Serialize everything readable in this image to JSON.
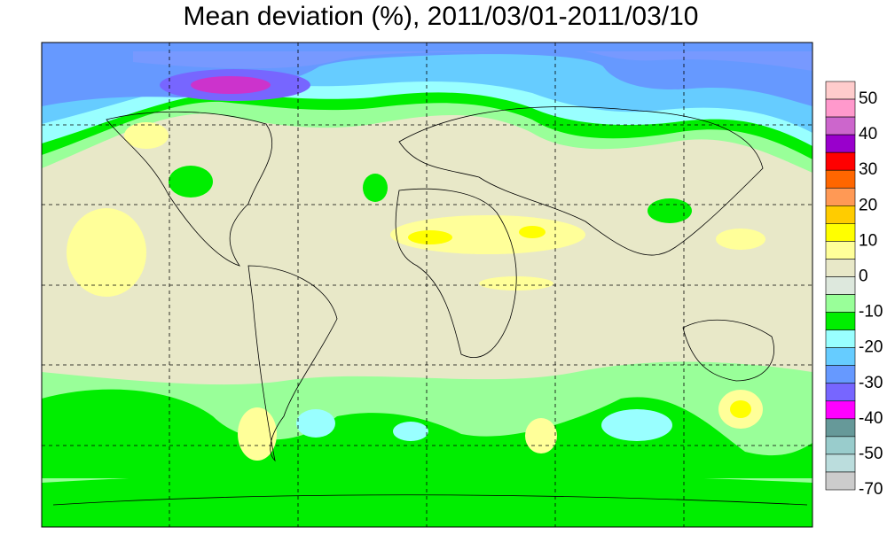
{
  "title": "Mean deviation (%), 2011/03/01-2011/03/10",
  "colorbar": {
    "colors": [
      "#ffcccc",
      "#ff99cc",
      "#cc66cc",
      "#9900cc",
      "#ff0000",
      "#ff6600",
      "#ff9955",
      "#ffcc00",
      "#ffff00",
      "#ffff99",
      "#e8e8c8",
      "#dde8dd",
      "#99ff99",
      "#00ee00",
      "#99ffff",
      "#66ccff",
      "#6699ff",
      "#7766ff",
      "#ff00ff",
      "#669999",
      "#99cccc",
      "#bbdddd",
      "#cccccc"
    ],
    "labels": [
      50,
      40,
      30,
      20,
      10,
      0,
      -10,
      -20,
      -30,
      -40,
      -50,
      -70
    ]
  }
}
